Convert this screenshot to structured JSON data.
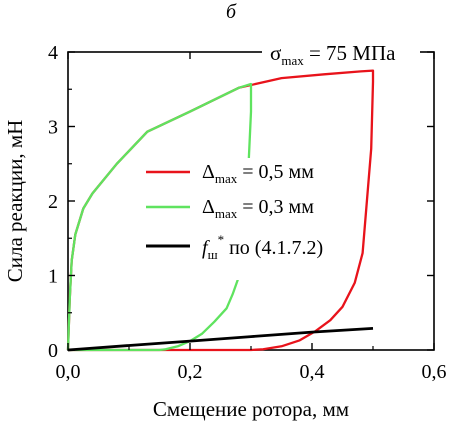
{
  "chart_data": {
    "type": "line",
    "caption": "б",
    "annotation": {
      "symbol": "σ",
      "subscript": "max",
      "rest": " = 75 МПа"
    },
    "xlabel": "Смещение ротора, мм",
    "ylabel": "Сила реакции, мН",
    "xlim": [
      0,
      0.6
    ],
    "ylim": [
      0,
      4
    ],
    "xticks": [
      0,
      0.2,
      0.4,
      0.6
    ],
    "xtick_labels": [
      "0,0",
      "0,2",
      "0,4",
      "0,6"
    ],
    "yticks": [
      0,
      1,
      2,
      3,
      4
    ],
    "ytick_labels": [
      "0",
      "1",
      "2",
      "3",
      "4"
    ],
    "grid": false,
    "legend_position": "center",
    "series": [
      {
        "name": "Δmax = 0,5 мм",
        "legend": {
          "symbol": "Δ",
          "subscript": "max",
          "rest": " = 0,5 мм"
        },
        "color": "#e8131b",
        "points": [
          [
            0,
            0
          ],
          [
            0.003,
            0.7
          ],
          [
            0.006,
            1.2
          ],
          [
            0.012,
            1.55
          ],
          [
            0.025,
            1.9
          ],
          [
            0.04,
            2.1
          ],
          [
            0.08,
            2.5
          ],
          [
            0.13,
            2.93
          ],
          [
            0.2,
            3.2
          ],
          [
            0.28,
            3.52
          ],
          [
            0.35,
            3.65
          ],
          [
            0.42,
            3.7
          ],
          [
            0.48,
            3.74
          ],
          [
            0.5,
            3.75
          ],
          [
            0.5,
            3.6
          ],
          [
            0.497,
            2.7
          ],
          [
            0.49,
            2.0
          ],
          [
            0.483,
            1.3
          ],
          [
            0.47,
            0.9
          ],
          [
            0.45,
            0.58
          ],
          [
            0.43,
            0.4
          ],
          [
            0.405,
            0.25
          ],
          [
            0.38,
            0.13
          ],
          [
            0.35,
            0.05
          ],
          [
            0.32,
            0.01
          ],
          [
            0.3,
            0.0
          ],
          [
            0.25,
            0
          ],
          [
            0.15,
            0
          ],
          [
            0.05,
            0
          ],
          [
            0,
            0
          ]
        ]
      },
      {
        "name": "Δmax = 0,3 мм",
        "legend": {
          "symbol": "Δ",
          "subscript": "max",
          "rest": " = 0,3 мм"
        },
        "color": "#5fe35f",
        "points": [
          [
            0,
            0
          ],
          [
            0.003,
            0.7
          ],
          [
            0.006,
            1.2
          ],
          [
            0.012,
            1.55
          ],
          [
            0.025,
            1.9
          ],
          [
            0.04,
            2.1
          ],
          [
            0.08,
            2.5
          ],
          [
            0.13,
            2.93
          ],
          [
            0.2,
            3.2
          ],
          [
            0.25,
            3.4
          ],
          [
            0.28,
            3.52
          ],
          [
            0.3,
            3.57
          ],
          [
            0.3,
            3.2
          ],
          [
            0.295,
            2.3
          ],
          [
            0.29,
            1.6
          ],
          [
            0.283,
            1.05
          ],
          [
            0.27,
            0.75
          ],
          [
            0.26,
            0.56
          ],
          [
            0.24,
            0.38
          ],
          [
            0.22,
            0.22
          ],
          [
            0.2,
            0.12
          ],
          [
            0.18,
            0.05
          ],
          [
            0.16,
            0.01
          ],
          [
            0.15,
            0
          ],
          [
            0.1,
            0
          ],
          [
            0.05,
            0
          ],
          [
            0,
            0
          ]
        ]
      },
      {
        "name": "fш* по (4.1.7.2)",
        "legend": {
          "symbol": "f",
          "subscript": "ш",
          "superscript": "*",
          "rest": " по (4.1.7.2)"
        },
        "color": "#000000",
        "points": [
          [
            0,
            0
          ],
          [
            0.1,
            0.06
          ],
          [
            0.2,
            0.12
          ],
          [
            0.3,
            0.18
          ],
          [
            0.4,
            0.24
          ],
          [
            0.5,
            0.29
          ]
        ]
      }
    ]
  }
}
